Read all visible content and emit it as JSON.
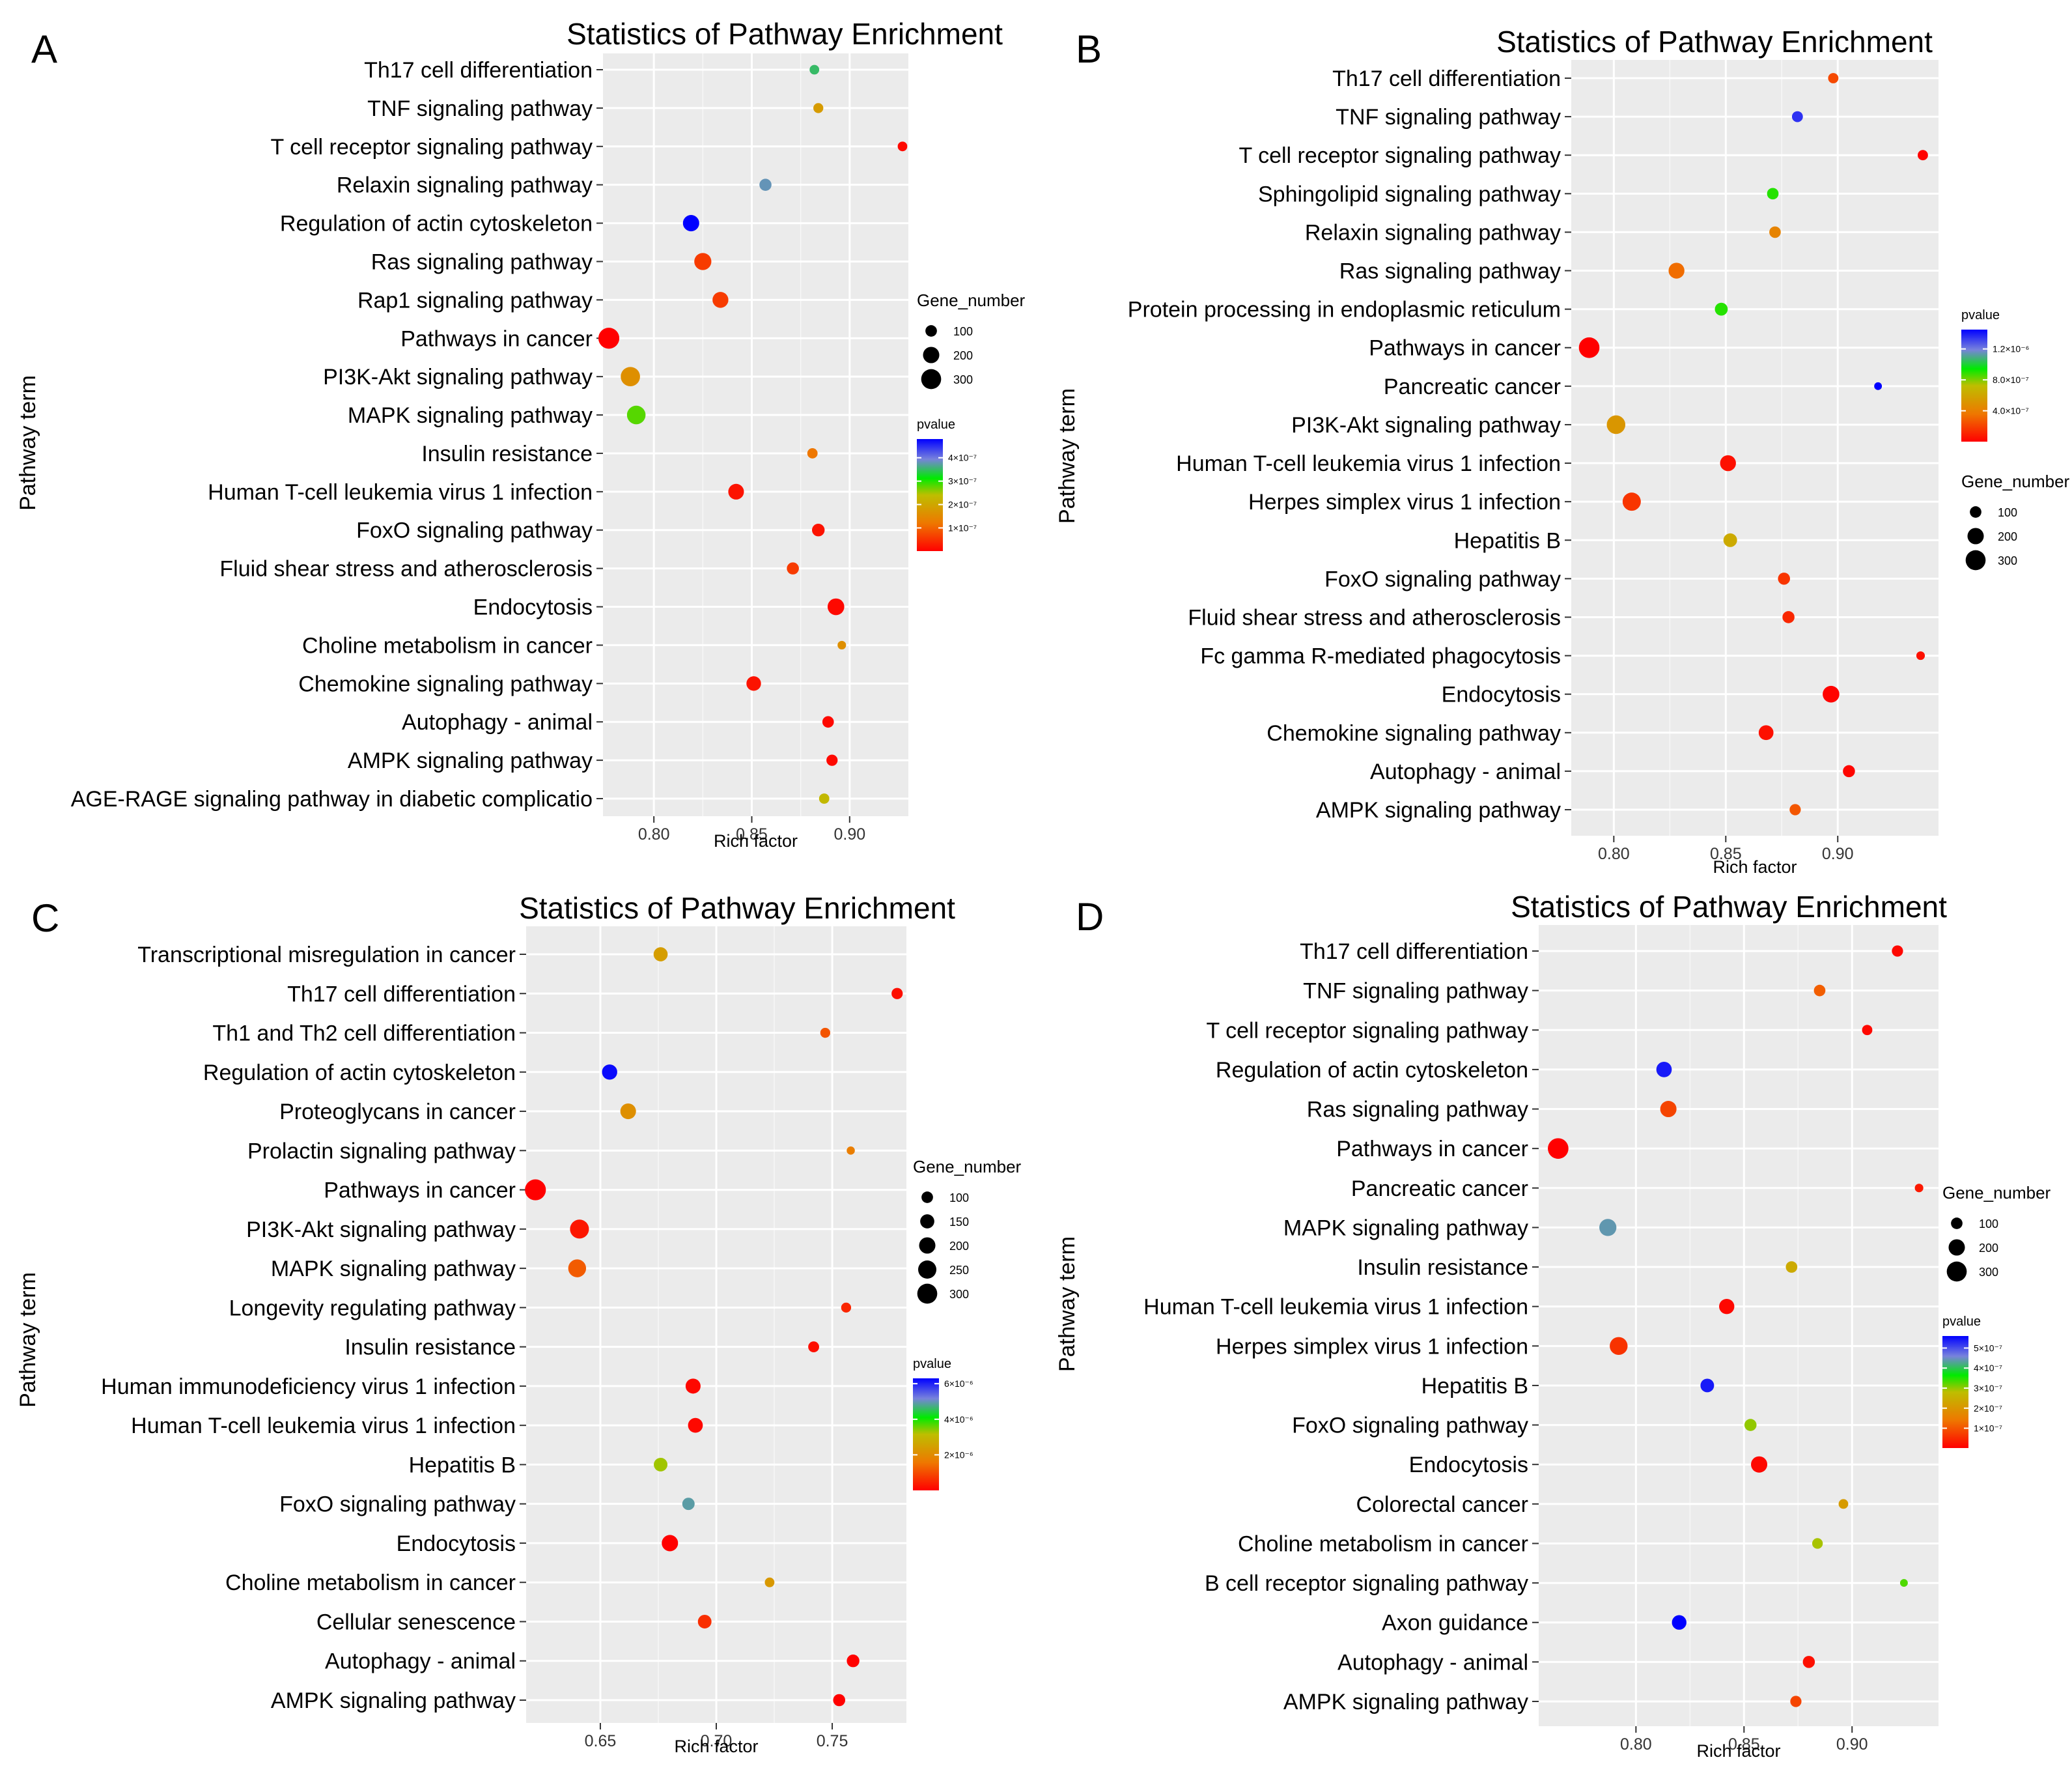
{
  "figure": {
    "panel_count": 4
  },
  "chart_data": [
    {
      "panel_label": "A",
      "type": "scatter",
      "title": "Statistics of Pathway Enrichment",
      "xlabel": "Rich factor",
      "ylabel": "Pathway term",
      "xlim": [
        0.774,
        0.93
      ],
      "xticks": [
        0.8,
        0.85,
        0.9
      ],
      "xtick_labels": [
        "0.80",
        "0.85",
        "0.90"
      ],
      "grid": true,
      "legend_placement": "right",
      "pvalue_range": [
        1e-09,
        4.8e-07
      ],
      "size_legend": {
        "title": "Gene_number",
        "values": [
          100,
          200,
          300
        ],
        "labels": [
          "100",
          "200",
          "300"
        ]
      },
      "color_legend": {
        "title": "pvalue",
        "ticks": [
          1e-07,
          2e-07,
          3e-07,
          4e-07
        ],
        "tick_labels": [
          "1×10⁻⁷",
          "2×10⁻⁷",
          "3×10⁻⁷",
          "4×10⁻⁷"
        ]
      },
      "points": [
        {
          "term": "Th17 cell differentiation",
          "x": 0.882,
          "genes": 70,
          "p": 3.5e-07
        },
        {
          "term": "TNF signaling pathway",
          "x": 0.884,
          "genes": 75,
          "p": 1.8e-07
        },
        {
          "term": "T cell receptor signaling pathway",
          "x": 0.927,
          "genes": 70,
          "p": 1e-08
        },
        {
          "term": "Relaxin signaling pathway",
          "x": 0.857,
          "genes": 110,
          "p": 3.8e-07
        },
        {
          "term": "Regulation of actin cytoskeleton",
          "x": 0.819,
          "genes": 200,
          "p": 4.8e-07
        },
        {
          "term": "Ras signaling pathway",
          "x": 0.825,
          "genes": 220,
          "p": 6e-08
        },
        {
          "term": "Rap1 signaling pathway",
          "x": 0.834,
          "genes": 190,
          "p": 6e-08
        },
        {
          "term": "Pathways in cancer",
          "x": 0.777,
          "genes": 330,
          "p": 1e-09
        },
        {
          "term": "PI3K-Akt signaling pathway",
          "x": 0.788,
          "genes": 280,
          "p": 1.6e-07
        },
        {
          "term": "MAPK signaling pathway",
          "x": 0.791,
          "genes": 260,
          "p": 2.8e-07
        },
        {
          "term": "Insulin resistance",
          "x": 0.881,
          "genes": 80,
          "p": 1.2e-07
        },
        {
          "term": "Human T-cell leukemia virus 1 infection",
          "x": 0.842,
          "genes": 185,
          "p": 2e-08
        },
        {
          "term": "FoxO signaling pathway",
          "x": 0.884,
          "genes": 120,
          "p": 2e-08
        },
        {
          "term": "Fluid shear stress and atherosclerosis",
          "x": 0.871,
          "genes": 110,
          "p": 6e-08
        },
        {
          "term": "Endocytosis",
          "x": 0.893,
          "genes": 210,
          "p": 1e-08
        },
        {
          "term": "Choline metabolism in cancer",
          "x": 0.896,
          "genes": 55,
          "p": 1.6e-07
        },
        {
          "term": "Chemokine signaling pathway",
          "x": 0.851,
          "genes": 160,
          "p": 2e-08
        },
        {
          "term": "Autophagy - animal",
          "x": 0.889,
          "genes": 100,
          "p": 1e-08
        },
        {
          "term": "AMPK signaling pathway",
          "x": 0.891,
          "genes": 95,
          "p": 1e-08
        },
        {
          "term": "AGE-RAGE signaling pathway in diabetic complicatio",
          "x": 0.887,
          "genes": 80,
          "p": 2.3e-07
        }
      ]
    },
    {
      "panel_label": "B",
      "type": "scatter",
      "title": "Statistics of Pathway Enrichment",
      "xlabel": "Rich factor",
      "ylabel": "Pathway term",
      "xlim": [
        0.781,
        0.945
      ],
      "xticks": [
        0.8,
        0.85,
        0.9
      ],
      "xtick_labels": [
        "0.80",
        "0.85",
        "0.90"
      ],
      "grid": true,
      "legend_placement": "right",
      "pvalue_range": [
        1e-09,
        1.45e-06
      ],
      "size_legend": {
        "title": "Gene_number",
        "values": [
          100,
          200,
          300
        ],
        "labels": [
          "100",
          "200",
          "300"
        ]
      },
      "color_legend": {
        "title": "pvalue",
        "ticks": [
          4e-07,
          8e-07,
          1.2e-06
        ],
        "tick_labels": [
          "4.0×10⁻⁷",
          "8.0×10⁻⁷",
          "1.2×10⁻⁶"
        ]
      },
      "points": [
        {
          "term": "Th17 cell differentiation",
          "x": 0.898,
          "genes": 80,
          "p": 2.2e-07
        },
        {
          "term": "TNF signaling pathway",
          "x": 0.882,
          "genes": 90,
          "p": 1.35e-06
        },
        {
          "term": "T cell receptor signaling pathway",
          "x": 0.938,
          "genes": 80,
          "p": 1e-08
        },
        {
          "term": "Sphingolipid signaling pathway",
          "x": 0.871,
          "genes": 100,
          "p": 9e-07
        },
        {
          "term": "Relaxin signaling pathway",
          "x": 0.872,
          "genes": 100,
          "p": 4.2e-07
        },
        {
          "term": "Ras signaling pathway",
          "x": 0.828,
          "genes": 190,
          "p": 3.3e-07
        },
        {
          "term": "Protein processing in endoplasmic reticulum",
          "x": 0.848,
          "genes": 125,
          "p": 9e-07
        },
        {
          "term": "Pathways in cancer",
          "x": 0.789,
          "genes": 320,
          "p": 1e-09
        },
        {
          "term": "Pancreatic cancer",
          "x": 0.918,
          "genes": 45,
          "p": 1.45e-06
        },
        {
          "term": "PI3K-Akt signaling pathway",
          "x": 0.801,
          "genes": 260,
          "p": 5.2e-07
        },
        {
          "term": "Human T-cell leukemia virus 1 infection",
          "x": 0.851,
          "genes": 190,
          "p": 5e-08
        },
        {
          "term": "Herpes simplex virus 1 infection",
          "x": 0.808,
          "genes": 250,
          "p": 1.6e-07
        },
        {
          "term": "Hepatitis B",
          "x": 0.852,
          "genes": 140,
          "p": 6.2e-07
        },
        {
          "term": "FoxO signaling pathway",
          "x": 0.876,
          "genes": 110,
          "p": 1.6e-07
        },
        {
          "term": "Fluid shear stress and atherosclerosis",
          "x": 0.878,
          "genes": 110,
          "p": 1.2e-07
        },
        {
          "term": "Fc gamma R-mediated phagocytosis",
          "x": 0.937,
          "genes": 55,
          "p": 5e-08
        },
        {
          "term": "Endocytosis",
          "x": 0.897,
          "genes": 210,
          "p": 1e-08
        },
        {
          "term": "Chemokine signaling pathway",
          "x": 0.868,
          "genes": 165,
          "p": 5e-08
        },
        {
          "term": "Autophagy - animal",
          "x": 0.905,
          "genes": 110,
          "p": 2e-08
        },
        {
          "term": "AMPK signaling pathway",
          "x": 0.881,
          "genes": 95,
          "p": 2.6e-07
        }
      ]
    },
    {
      "panel_label": "C",
      "type": "scatter",
      "title": "Statistics of Pathway Enrichment",
      "xlabel": "Rich factor",
      "ylabel": "Pathway term",
      "xlim": [
        0.618,
        0.782
      ],
      "xticks": [
        0.65,
        0.7,
        0.75
      ],
      "xtick_labels": [
        "0.65",
        "0.70",
        "0.75"
      ],
      "grid": true,
      "legend_placement": "right",
      "pvalue_range": [
        1e-09,
        6.3e-06
      ],
      "size_legend": {
        "title": "Gene_number",
        "values": [
          100,
          150,
          200,
          250,
          300
        ],
        "labels": [
          "100",
          "150",
          "200",
          "250",
          "300"
        ]
      },
      "color_legend": {
        "title": "pvalue",
        "ticks": [
          2e-06,
          4e-06,
          6e-06
        ],
        "tick_labels": [
          "2×10⁻⁶",
          "4×10⁻⁶",
          "6×10⁻⁶"
        ]
      },
      "points": [
        {
          "term": "Transcriptional misregulation in cancer",
          "x": 0.676,
          "genes": 150,
          "p": 2.4e-06
        },
        {
          "term": "Th17 cell differentiation",
          "x": 0.778,
          "genes": 95,
          "p": 2e-07
        },
        {
          "term": "Th1 and Th2 cell differentiation",
          "x": 0.747,
          "genes": 75,
          "p": 1.1e-06
        },
        {
          "term": "Regulation of actin cytoskeleton",
          "x": 0.654,
          "genes": 175,
          "p": 6.2e-06
        },
        {
          "term": "Proteoglycans in cancer",
          "x": 0.662,
          "genes": 185,
          "p": 2.1e-06
        },
        {
          "term": "Prolactin signaling pathway",
          "x": 0.758,
          "genes": 50,
          "p": 1.7e-06
        },
        {
          "term": "Pathways in cancer",
          "x": 0.622,
          "genes": 330,
          "p": 1e-09
        },
        {
          "term": "PI3K-Akt signaling pathway",
          "x": 0.641,
          "genes": 270,
          "p": 3e-07
        },
        {
          "term": "MAPK signaling pathway",
          "x": 0.64,
          "genes": 240,
          "p": 1.2e-06
        },
        {
          "term": "Longevity regulating pathway",
          "x": 0.756,
          "genes": 75,
          "p": 5e-07
        },
        {
          "term": "Insulin resistance",
          "x": 0.742,
          "genes": 90,
          "p": 2e-07
        },
        {
          "term": "Human immunodeficiency virus 1 infection",
          "x": 0.69,
          "genes": 170,
          "p": 1e-07
        },
        {
          "term": "Human T-cell leukemia virus 1 infection",
          "x": 0.691,
          "genes": 165,
          "p": 1e-07
        },
        {
          "term": "Hepatitis B",
          "x": 0.676,
          "genes": 140,
          "p": 3.3e-06
        },
        {
          "term": "FoxO signaling pathway",
          "x": 0.688,
          "genes": 115,
          "p": 4.9e-06
        },
        {
          "term": "Endocytosis",
          "x": 0.68,
          "genes": 200,
          "p": 1e-08
        },
        {
          "term": "Choline metabolism in cancer",
          "x": 0.723,
          "genes": 70,
          "p": 2.3e-06
        },
        {
          "term": "Cellular senescence",
          "x": 0.695,
          "genes": 140,
          "p": 6e-07
        },
        {
          "term": "Autophagy - animal",
          "x": 0.759,
          "genes": 120,
          "p": 2e-08
        },
        {
          "term": "AMPK signaling pathway",
          "x": 0.753,
          "genes": 110,
          "p": 2e-08
        }
      ]
    },
    {
      "panel_label": "D",
      "type": "scatter",
      "title": "Statistics of Pathway Enrichment",
      "xlabel": "Rich factor",
      "ylabel": "Pathway term",
      "xlim": [
        0.755,
        0.94
      ],
      "xticks": [
        0.8,
        0.85,
        0.9
      ],
      "xtick_labels": [
        "0.80",
        "0.85",
        "0.90"
      ],
      "grid": true,
      "legend_placement": "right",
      "pvalue_range": [
        1e-09,
        5.6e-07
      ],
      "size_legend": {
        "title": "Gene_number",
        "values": [
          100,
          200,
          300
        ],
        "labels": [
          "100",
          "200",
          "300"
        ]
      },
      "color_legend": {
        "title": "pvalue",
        "ticks": [
          1e-07,
          2e-07,
          3e-07,
          4e-07,
          5e-07
        ],
        "tick_labels": [
          "1×10⁻⁷",
          "2×10⁻⁷",
          "3×10⁻⁷",
          "4×10⁻⁷",
          "5×10⁻⁷"
        ]
      },
      "points": [
        {
          "term": "Th17 cell differentiation",
          "x": 0.921,
          "genes": 95,
          "p": 1e-08
        },
        {
          "term": "TNF signaling pathway",
          "x": 0.885,
          "genes": 100,
          "p": 1.1e-07
        },
        {
          "term": "T cell receptor signaling pathway",
          "x": 0.907,
          "genes": 80,
          "p": 1e-08
        },
        {
          "term": "Regulation of actin cytoskeleton",
          "x": 0.813,
          "genes": 180,
          "p": 5.4e-07
        },
        {
          "term": "Ras signaling pathway",
          "x": 0.815,
          "genes": 200,
          "p": 8e-08
        },
        {
          "term": "Pathways in cancer",
          "x": 0.764,
          "genes": 320,
          "p": 1e-09
        },
        {
          "term": "Pancreatic cancer",
          "x": 0.931,
          "genes": 55,
          "p": 3e-08
        },
        {
          "term": "MAPK signaling pathway",
          "x": 0.787,
          "genes": 220,
          "p": 4.4e-07
        },
        {
          "term": "Insulin resistance",
          "x": 0.872,
          "genes": 100,
          "p": 2.4e-07
        },
        {
          "term": "Human T-cell leukemia virus 1 infection",
          "x": 0.842,
          "genes": 175,
          "p": 1e-08
        },
        {
          "term": "Herpes simplex virus 1 infection",
          "x": 0.792,
          "genes": 240,
          "p": 6e-08
        },
        {
          "term": "Hepatitis B",
          "x": 0.833,
          "genes": 140,
          "p": 5.4e-07
        },
        {
          "term": "FoxO signaling pathway",
          "x": 0.853,
          "genes": 110,
          "p": 3e-07
        },
        {
          "term": "Endocytosis",
          "x": 0.857,
          "genes": 200,
          "p": 1e-08
        },
        {
          "term": "Colorectal cancer",
          "x": 0.896,
          "genes": 70,
          "p": 2.1e-07
        },
        {
          "term": "Choline metabolism in cancer",
          "x": 0.884,
          "genes": 85,
          "p": 2.9e-07
        },
        {
          "term": "B cell receptor signaling pathway",
          "x": 0.924,
          "genes": 45,
          "p": 3.3e-07
        },
        {
          "term": "Axon guidance",
          "x": 0.82,
          "genes": 160,
          "p": 5.6e-07
        },
        {
          "term": "Autophagy - animal",
          "x": 0.88,
          "genes": 110,
          "p": 2e-08
        },
        {
          "term": "AMPK signaling pathway",
          "x": 0.874,
          "genes": 95,
          "p": 8e-08
        }
      ]
    }
  ]
}
